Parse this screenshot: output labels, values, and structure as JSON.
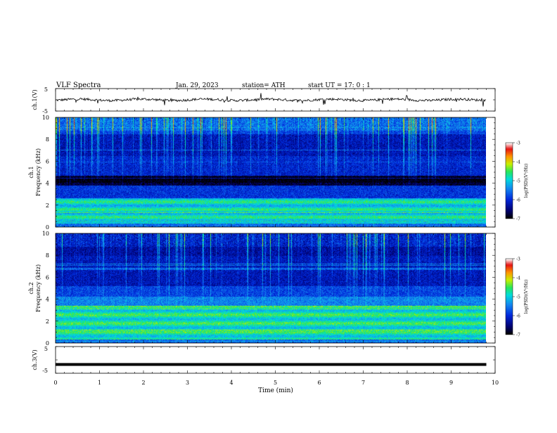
{
  "header": {
    "title": "VLF  Spectra",
    "date": "Jan. 29, 2023",
    "station": "station= ATH",
    "start": "start  UT  =   17: 0  : 1"
  },
  "chart_data": [
    {
      "type": "line",
      "panel": "ch1-waveform",
      "ylabel": "ch.1(V)",
      "ylim": [
        -5,
        5
      ],
      "yticks": [
        "5",
        "-5"
      ],
      "xlim": [
        0,
        10
      ],
      "note": "continuous noisy waveform near 0 V with spikes"
    },
    {
      "type": "heatmap",
      "panel": "ch1-spectrogram",
      "ylabel": "ch.1\nFrequency (kHz)",
      "ylabel_line1": "ch.1",
      "ylabel_line2": "Frequency (kHz)",
      "ylim": [
        0,
        10
      ],
      "yticks": [
        "0",
        "2",
        "4",
        "6",
        "8",
        "10"
      ],
      "xlim": [
        0,
        9.8
      ],
      "colorbar": {
        "label": "log(PSD)(V²/Hz)",
        "range": [
          -7,
          -3
        ],
        "ticks": [
          "-3",
          "-4",
          "-5",
          "-6",
          "-7"
        ]
      }
    },
    {
      "type": "heatmap",
      "panel": "ch2-spectrogram",
      "ylabel_line1": "ch.2",
      "ylabel_line2": "Frequency (kHz)",
      "ylim": [
        0,
        10
      ],
      "yticks": [
        "0",
        "2",
        "4",
        "6",
        "8",
        "10"
      ],
      "xlim": [
        0,
        9.8
      ],
      "colorbar": {
        "label": "log(PSD)(V²/Hz)",
        "range": [
          -7,
          -3
        ],
        "ticks": [
          "-3",
          "-4",
          "-5",
          "-6",
          "-7"
        ]
      }
    },
    {
      "type": "line",
      "panel": "ch3-waveform",
      "ylabel": "ch.3(V)",
      "ylim": [
        -5,
        5
      ],
      "yticks": [
        "5",
        "-5"
      ],
      "xlim": [
        0,
        10
      ],
      "xlabel": "Time  (min)",
      "xticks": [
        "0",
        "1",
        "2",
        "3",
        "4",
        "5",
        "6",
        "7",
        "8",
        "9",
        "10"
      ],
      "note": "flat trace at about -1.7 V"
    }
  ]
}
